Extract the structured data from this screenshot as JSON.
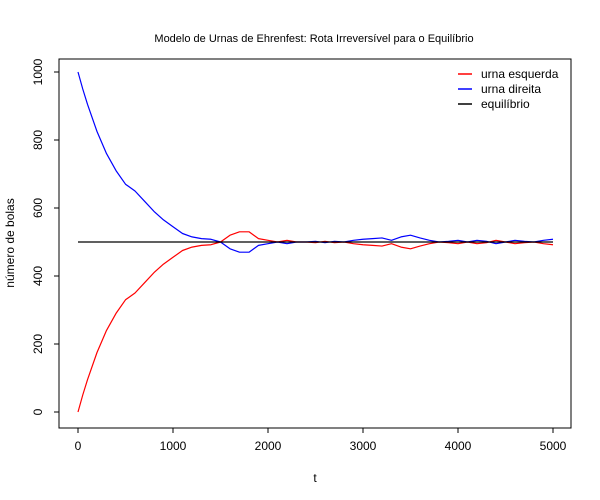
{
  "chart_data": {
    "type": "line",
    "title": "Modelo de Urnas de Ehrenfest: Rota Irreversível para o Equilíbrio",
    "xlabel": "t",
    "ylabel": "número de bolas",
    "xlim": [
      0,
      5000
    ],
    "ylim": [
      0,
      1000
    ],
    "x_ticks": [
      0,
      1000,
      2000,
      3000,
      4000,
      5000
    ],
    "y_ticks": [
      0,
      200,
      400,
      600,
      800,
      1000
    ],
    "grid": false,
    "legend_position": "top-right",
    "series": [
      {
        "name": "urna esquerda",
        "color": "#ff0000",
        "x": [
          0,
          50,
          100,
          200,
          300,
          400,
          500,
          600,
          700,
          800,
          900,
          1000,
          1100,
          1200,
          1300,
          1400,
          1500,
          1600,
          1700,
          1800,
          1900,
          2000,
          2100,
          2200,
          2300,
          2400,
          2500,
          2600,
          2700,
          2800,
          2900,
          3000,
          3100,
          3200,
          3300,
          3400,
          3500,
          3600,
          3700,
          3800,
          3900,
          4000,
          4100,
          4200,
          4300,
          4400,
          4500,
          4600,
          4700,
          4800,
          4900,
          5000
        ],
        "values": [
          0,
          50,
          95,
          175,
          240,
          290,
          330,
          350,
          380,
          410,
          435,
          455,
          475,
          485,
          490,
          492,
          500,
          520,
          530,
          530,
          510,
          505,
          500,
          505,
          500,
          500,
          498,
          502,
          498,
          500,
          495,
          492,
          490,
          488,
          495,
          485,
          480,
          488,
          495,
          500,
          498,
          495,
          500,
          495,
          498,
          505,
          500,
          495,
          498,
          500,
          495,
          492
        ]
      },
      {
        "name": "urna direita",
        "color": "#0000ff",
        "x": [
          0,
          50,
          100,
          200,
          300,
          400,
          500,
          600,
          700,
          800,
          900,
          1000,
          1100,
          1200,
          1300,
          1400,
          1500,
          1600,
          1700,
          1800,
          1900,
          2000,
          2100,
          2200,
          2300,
          2400,
          2500,
          2600,
          2700,
          2800,
          2900,
          3000,
          3100,
          3200,
          3300,
          3400,
          3500,
          3600,
          3700,
          3800,
          3900,
          4000,
          4100,
          4200,
          4300,
          4400,
          4500,
          4600,
          4700,
          4800,
          4900,
          5000
        ],
        "values": [
          1000,
          950,
          905,
          825,
          760,
          710,
          670,
          650,
          620,
          590,
          565,
          545,
          525,
          515,
          510,
          508,
          500,
          480,
          470,
          470,
          490,
          495,
          500,
          495,
          500,
          500,
          502,
          498,
          502,
          500,
          505,
          508,
          510,
          512,
          505,
          515,
          520,
          512,
          505,
          500,
          502,
          505,
          500,
          505,
          502,
          495,
          500,
          505,
          502,
          500,
          505,
          508
        ]
      },
      {
        "name": "equilíbrio",
        "color": "#000000",
        "x": [
          0,
          5000
        ],
        "values": [
          500,
          500
        ]
      }
    ]
  }
}
